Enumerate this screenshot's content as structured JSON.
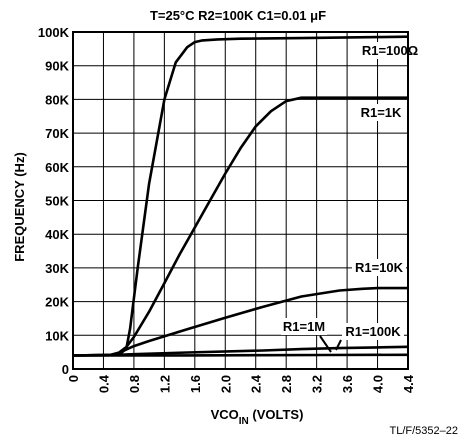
{
  "chart_data": {
    "type": "line",
    "title": "T=25°C   R2=100K   C1=0.01 μF",
    "xlabel_main": "VCO",
    "xlabel_sub": "IN",
    "xlabel_tail": " (VOLTS)",
    "ylabel": "FREQUENCY (Hz)",
    "xlim": [
      0,
      4.4
    ],
    "ylim": [
      0,
      100000
    ],
    "x_ticks": [
      "0",
      "0.4",
      "0.8",
      "1.2",
      "1.6",
      "2.0",
      "2.4",
      "2.8",
      "3.2",
      "3.6",
      "4.0",
      "4.4"
    ],
    "y_ticks": [
      "0",
      "10K",
      "20K",
      "30K",
      "40K",
      "50K",
      "60K",
      "70K",
      "80K",
      "90K",
      "100K"
    ],
    "grid": true,
    "series": [
      {
        "name": "R1=100Ω",
        "x": [
          0,
          0.5,
          0.62,
          0.7,
          0.75,
          0.85,
          1.0,
          1.2,
          1.35,
          1.5,
          1.6,
          1.7,
          1.9,
          2.2,
          3.0,
          4.0,
          4.4
        ],
        "y": [
          4000,
          4100,
          4500,
          6000,
          12000,
          30000,
          55000,
          80000,
          91000,
          95500,
          97000,
          97500,
          97800,
          98000,
          98200,
          98500,
          98600
        ]
      },
      {
        "name": "R1=1K",
        "x": [
          0,
          0.5,
          0.6,
          0.7,
          0.8,
          1.0,
          1.2,
          1.4,
          1.6,
          1.8,
          2.0,
          2.2,
          2.4,
          2.6,
          2.8,
          3.0,
          3.2,
          4.4
        ],
        "y": [
          4000,
          4200,
          4800,
          6500,
          9500,
          17000,
          25500,
          34000,
          42000,
          50000,
          58000,
          65500,
          72000,
          76500,
          79500,
          80500,
          80500,
          80500
        ]
      },
      {
        "name": "R1=10K",
        "x": [
          0,
          0.5,
          0.6,
          0.7,
          0.8,
          1.0,
          1.5,
          2.0,
          2.5,
          3.0,
          3.5,
          3.8,
          4.0,
          4.4
        ],
        "y": [
          4000,
          4200,
          4800,
          5800,
          6800,
          8300,
          11800,
          15200,
          18500,
          21500,
          23300,
          23800,
          24000,
          24000
        ]
      },
      {
        "name": "R1=100K",
        "x": [
          0,
          0.5,
          0.6,
          0.8,
          1.5,
          2.5,
          3.0,
          3.5,
          4.0,
          4.4
        ],
        "y": [
          4000,
          4100,
          4200,
          4400,
          4900,
          5500,
          5900,
          6200,
          6400,
          6600
        ]
      },
      {
        "name": "R1=1M",
        "x": [
          0,
          0.6,
          1.5,
          2.5,
          3.3,
          4.4
        ],
        "y": [
          4000,
          4000,
          4050,
          4100,
          4150,
          4200
        ]
      }
    ],
    "series_labels": [
      {
        "text": "R1=100Ω"
      },
      {
        "text": "R1=1K"
      },
      {
        "text": "R1=10K"
      },
      {
        "text": "R1=1M"
      },
      {
        "text": "R1=100K"
      }
    ],
    "footnote": "TL/F/5352–22"
  }
}
